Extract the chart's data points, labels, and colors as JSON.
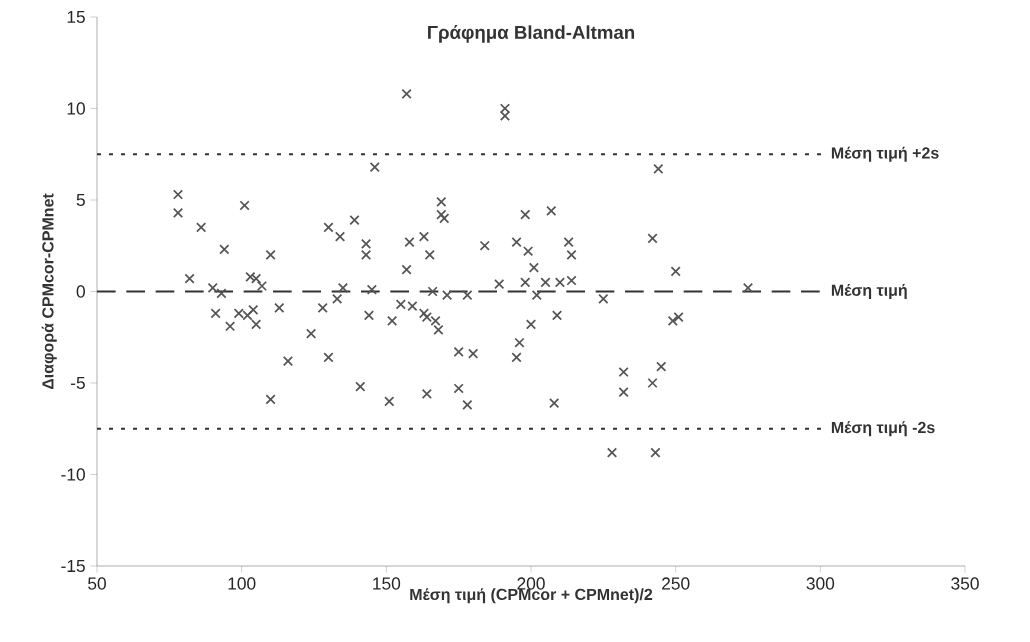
{
  "chart_data": {
    "type": "scatter",
    "title": "Γράφημα Bland-Altman",
    "xlabel": "Μέση τιμή (CPMcor + CPMnet)/2",
    "ylabel": "Διαφορά CPMcor-CPMnet",
    "xlim": [
      50,
      350
    ],
    "ylim": [
      -15,
      15
    ],
    "xticks": [
      50,
      100,
      150,
      200,
      250,
      300,
      350
    ],
    "yticks": [
      -15,
      -10,
      -5,
      0,
      5,
      10,
      15
    ],
    "grid": false,
    "marker": "cross",
    "series": [
      {
        "color": "#555555",
        "x": [
          78,
          78,
          82,
          86,
          90,
          91,
          93,
          94,
          96,
          99,
          101,
          102,
          103,
          104,
          105,
          105,
          107,
          110,
          110,
          113,
          116,
          124,
          128,
          130,
          130,
          133,
          134,
          135,
          139,
          141,
          143,
          143,
          144,
          145,
          146,
          151,
          152,
          155,
          157,
          157,
          158,
          159,
          163,
          163,
          164,
          164,
          165,
          166,
          167,
          168,
          169,
          169,
          170,
          171,
          175,
          175,
          178,
          178,
          180,
          184,
          189,
          191,
          191,
          195,
          195,
          196,
          198,
          198,
          199,
          200,
          201,
          202,
          205,
          207,
          208,
          209,
          210,
          213,
          214,
          214,
          225,
          228,
          232,
          232,
          242,
          242,
          243,
          244,
          245,
          249,
          250,
          251,
          275
        ],
        "values": [
          5.3,
          4.3,
          0.7,
          3.5,
          0.2,
          -1.2,
          -0.1,
          2.3,
          -1.9,
          -1.2,
          4.7,
          -1.3,
          0.8,
          -1.0,
          -1.8,
          0.7,
          0.3,
          2.0,
          -5.9,
          -0.9,
          -3.8,
          -2.3,
          -0.9,
          3.5,
          -3.6,
          -0.4,
          3.0,
          0.2,
          3.9,
          -5.2,
          2.6,
          2.0,
          -1.3,
          0.1,
          6.8,
          -6.0,
          -1.6,
          -0.7,
          10.8,
          1.2,
          2.7,
          -0.8,
          3.0,
          -1.2,
          -1.4,
          -5.6,
          2.0,
          0.0,
          -1.6,
          -2.1,
          4.2,
          4.9,
          4.0,
          -0.2,
          -3.3,
          -5.3,
          -0.2,
          -6.2,
          -3.4,
          2.5,
          0.4,
          9.6,
          10.0,
          2.7,
          -3.6,
          -2.8,
          4.2,
          0.5,
          2.2,
          -1.8,
          1.3,
          -0.2,
          0.5,
          4.4,
          -6.1,
          -1.3,
          0.5,
          2.7,
          0.6,
          2.0,
          -0.4,
          -8.8,
          -4.4,
          -5.5,
          2.9,
          -5.0,
          -8.8,
          6.7,
          -4.1,
          -1.6,
          1.1,
          -1.4,
          0.2
        ]
      }
    ],
    "ref_lines": [
      {
        "axis": "y",
        "value": 7.5,
        "label": "Μέση τιμή +2s",
        "line_style": "dotted"
      },
      {
        "axis": "y",
        "value": 0,
        "label": "Μέση τιμή",
        "line_style": "dashed"
      },
      {
        "axis": "y",
        "value": -7.5,
        "label": "Μέση τιμή -2s",
        "line_style": "dotted"
      }
    ]
  }
}
